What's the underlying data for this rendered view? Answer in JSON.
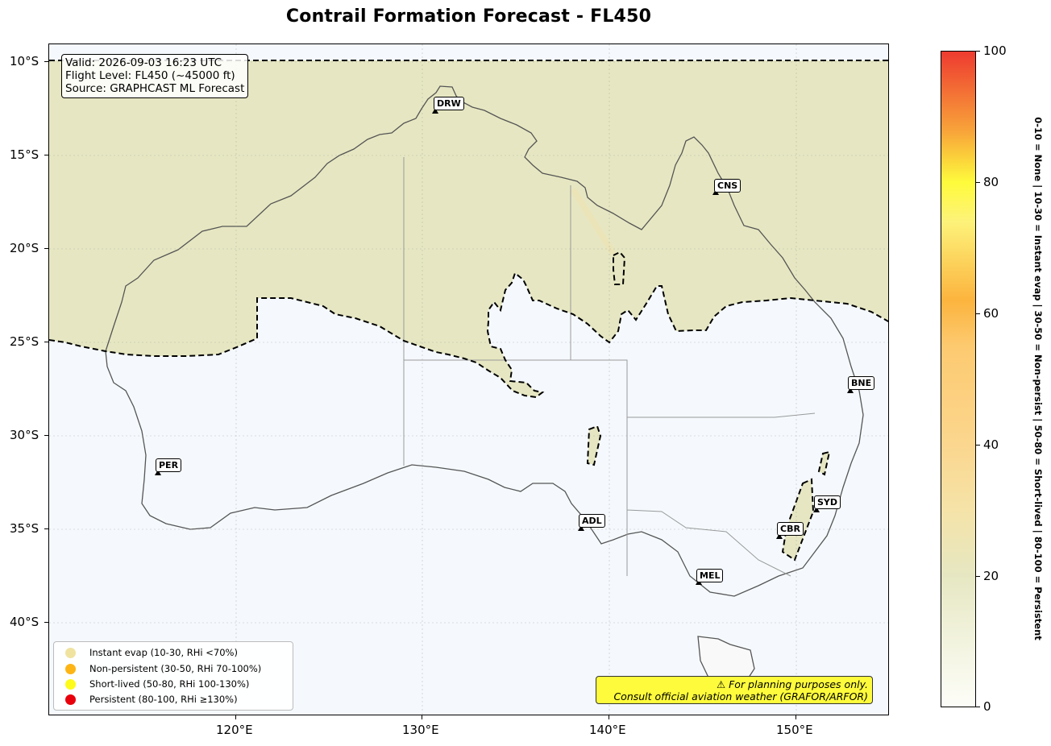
{
  "title": "Contrail Formation Forecast - FL450",
  "info": {
    "valid": "Valid: 2026-09-03 16:23 UTC",
    "flight_level": "Flight Level: FL450 (~45000 ft)",
    "source": "Source: GRAPHCAST ML Forecast"
  },
  "axes": {
    "lat_ticks": [
      "10°S",
      "15°S",
      "20°S",
      "25°S",
      "30°S",
      "35°S",
      "40°S"
    ],
    "lon_ticks": [
      "120°E",
      "130°E",
      "140°E",
      "150°E"
    ]
  },
  "cities": [
    {
      "code": "DRW"
    },
    {
      "code": "CNS"
    },
    {
      "code": "BNE"
    },
    {
      "code": "PER"
    },
    {
      "code": "ADL"
    },
    {
      "code": "SYD"
    },
    {
      "code": "CBR"
    },
    {
      "code": "MEL"
    }
  ],
  "legend": [
    {
      "label": "Instant evap (10-30, RHi <70%)",
      "color": "#f0e3a0"
    },
    {
      "label": "Non-persistent (30-50, RHi 70-100%)",
      "color": "#fdb515"
    },
    {
      "label": "Short-lived (50-80, RHi 100-130%)",
      "color": "#fdfb1a"
    },
    {
      "label": "Persistent (80-100, RHi ≥130%)",
      "color": "#e8000b"
    }
  ],
  "warning": {
    "line1": "⚠ For planning purposes only.",
    "line2": "Consult official aviation weather (GRAFOR/ARFOR)"
  },
  "colorbar": {
    "ticks": [
      "0",
      "20",
      "40",
      "60",
      "80",
      "100"
    ],
    "caption": "0-10 = None  |  10-30 = Instant evap  |  30-50 = Non-persist  |  50-80 = Short-lived  |  80-100 = Persistent"
  },
  "colors": {
    "contrail_zone": "#e6e7c2",
    "ocean_no_contrail": "#f5f9fd",
    "land_no_contrail": "#f9f9f9"
  }
}
